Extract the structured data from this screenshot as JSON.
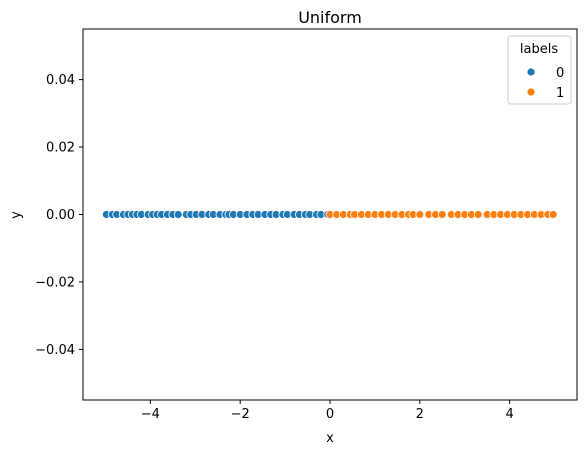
{
  "chart_data": {
    "type": "scatter",
    "title": "Uniform",
    "xlabel": "x",
    "ylabel": "y",
    "xlim": [
      -5.5,
      5.5
    ],
    "ylim": [
      -0.055,
      0.055
    ],
    "xticks": [
      -4,
      -2,
      0,
      2,
      4
    ],
    "xtick_labels": [
      "−4",
      "−2",
      "0",
      "2",
      "4"
    ],
    "yticks": [
      -0.04,
      -0.02,
      0.0,
      0.02,
      0.04
    ],
    "ytick_labels": [
      "−0.04",
      "−0.02",
      "0.00",
      "0.02",
      "0.04"
    ],
    "grid": false,
    "legend": {
      "title": "labels",
      "position": "top-right"
    },
    "series": [
      {
        "name": "0",
        "color": "#1f77b4",
        "x": [
          -4.98,
          -4.85,
          -4.75,
          -4.6,
          -4.5,
          -4.4,
          -4.3,
          -4.2,
          -4.05,
          -3.95,
          -3.85,
          -3.75,
          -3.62,
          -3.5,
          -3.38,
          -3.2,
          -3.1,
          -2.98,
          -2.85,
          -2.7,
          -2.6,
          -2.45,
          -2.32,
          -2.25,
          -2.15,
          -2.0,
          -1.85,
          -1.72,
          -1.6,
          -1.45,
          -1.32,
          -1.2,
          -1.05,
          -0.95,
          -0.8,
          -0.68,
          -0.55,
          -0.45,
          -0.3,
          -0.2,
          -0.05
        ],
        "y": [
          0,
          0,
          0,
          0,
          0,
          0,
          0,
          0,
          0,
          0,
          0,
          0,
          0,
          0,
          0,
          0,
          0,
          0,
          0,
          0,
          0,
          0,
          0,
          0,
          0,
          0,
          0,
          0,
          0,
          0,
          0,
          0,
          0,
          0,
          0,
          0,
          0,
          0,
          0,
          0,
          0
        ]
      },
      {
        "name": "1",
        "color": "#ff7f0e",
        "x": [
          0.0,
          0.15,
          0.3,
          0.45,
          0.55,
          0.7,
          0.85,
          1.0,
          1.15,
          1.3,
          1.45,
          1.6,
          1.75,
          1.85,
          2.0,
          2.2,
          2.35,
          2.5,
          2.7,
          2.85,
          3.0,
          3.15,
          3.3,
          3.5,
          3.65,
          3.8,
          3.95,
          4.1,
          4.25,
          4.4,
          4.55,
          4.7,
          4.85,
          4.97
        ],
        "y": [
          0,
          0,
          0,
          0,
          0,
          0,
          0,
          0,
          0,
          0,
          0,
          0,
          0,
          0,
          0,
          0,
          0,
          0,
          0,
          0,
          0,
          0,
          0,
          0,
          0,
          0,
          0,
          0,
          0,
          0,
          0,
          0,
          0,
          0
        ]
      }
    ]
  }
}
